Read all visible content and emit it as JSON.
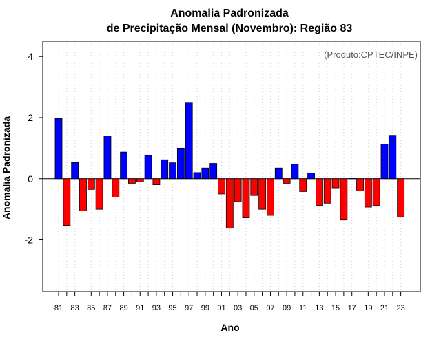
{
  "chart_data": {
    "type": "bar",
    "title_line1": "Anomalia Padronizada",
    "title_line2": "de Precipitação Mensal (Novembro): Região 83",
    "xlabel": "Ano",
    "ylabel": "Anomalia Padronizada",
    "annotation": "(Produto:CPTEC/INPE)",
    "ylim": [
      -3.7,
      4.5
    ],
    "yticks": [
      -2,
      0,
      2,
      4
    ],
    "grid": "vertical dotted",
    "positive_color": "#0000ff",
    "negative_color": "#ff0000",
    "categories": [
      "81",
      "82",
      "83",
      "84",
      "85",
      "86",
      "87",
      "88",
      "89",
      "90",
      "91",
      "92",
      "93",
      "94",
      "95",
      "96",
      "97",
      "98",
      "99",
      "00",
      "01",
      "02",
      "03",
      "04",
      "05",
      "06",
      "07",
      "08",
      "09",
      "10",
      "11",
      "12",
      "13",
      "14",
      "15",
      "16",
      "17",
      "18",
      "19",
      "20",
      "21",
      "22",
      "23"
    ],
    "tick_labels": [
      "81",
      "83",
      "85",
      "87",
      "89",
      "91",
      "93",
      "95",
      "97",
      "99",
      "01",
      "03",
      "05",
      "07",
      "09",
      "11",
      "13",
      "15",
      "17",
      "19",
      "21",
      "23"
    ],
    "values": [
      1.97,
      -1.53,
      0.53,
      -1.05,
      -0.35,
      -1.0,
      1.4,
      -0.6,
      0.87,
      -0.15,
      -0.1,
      0.76,
      -0.2,
      0.62,
      0.52,
      1.0,
      2.5,
      0.2,
      0.35,
      0.5,
      -0.5,
      -1.62,
      -0.75,
      -1.28,
      -0.55,
      -1.0,
      -1.2,
      0.35,
      -0.15,
      0.47,
      -0.42,
      0.18,
      -0.88,
      -0.8,
      -0.3,
      -1.35,
      0.03,
      -0.4,
      -0.93,
      -0.88,
      1.13,
      1.42,
      -1.25
    ]
  }
}
